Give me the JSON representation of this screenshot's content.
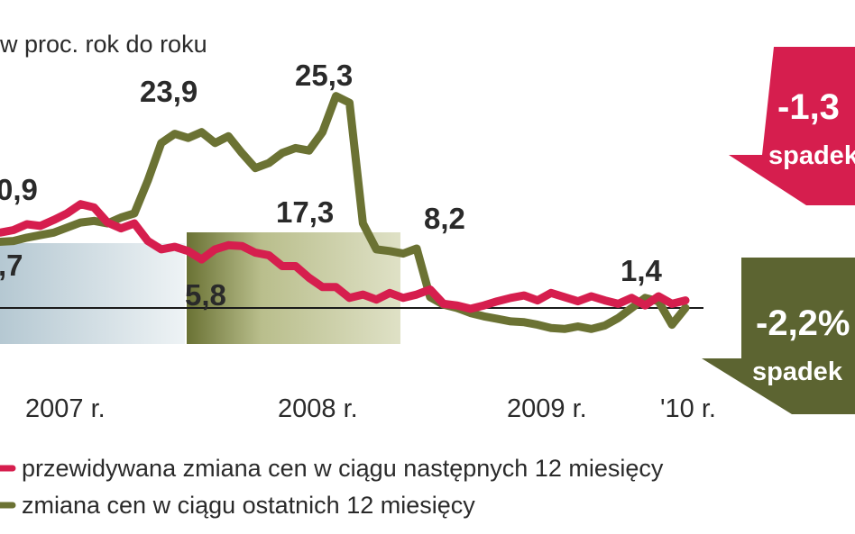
{
  "chart_data": {
    "type": "line",
    "unit_label": "w proc. rok do roku",
    "x_tick_labels": [
      "2007 r.",
      "2008 r.",
      "2009 r.",
      "'10 r."
    ],
    "series": [
      {
        "name": "przewidywana zmiana cen w ciągu następnych 12 miesięcy",
        "color": "#d61e4e",
        "values": [
          9.0,
          9.3,
          10.0,
          9.8,
          10.5,
          11.3,
          12.4,
          12.0,
          10.2,
          9.5,
          10.1,
          8.0,
          7.0,
          7.3,
          6.8,
          5.8,
          7.0,
          7.5,
          7.4,
          6.6,
          6.3,
          5.0,
          5.0,
          3.6,
          2.5,
          2.5,
          1.2,
          1.6,
          1.0,
          1.8,
          1.2,
          1.6,
          2.2,
          0.5,
          0.3,
          -0.1,
          0.3,
          0.8,
          1.2,
          1.5,
          0.9,
          1.8,
          1.3,
          0.8,
          1.4,
          0.9,
          0.5,
          1.2,
          0.3,
          1.4,
          0.5,
          0.9
        ]
      },
      {
        "name": "zmiana cen w ciągu ostatnich 12 miesięcy",
        "color": "#6b7233",
        "values": [
          7.9,
          8.0,
          8.4,
          8.7,
          9.0,
          9.6,
          10.2,
          10.4,
          10.1,
          10.8,
          11.3,
          15.2,
          19.7,
          20.8,
          20.3,
          21.0,
          19.7,
          20.5,
          18.5,
          16.7,
          17.3,
          18.5,
          19.1,
          18.8,
          21.0,
          25.3,
          24.5,
          10.1,
          7.0,
          6.8,
          6.5,
          7.1,
          1.3,
          0.4,
          0.0,
          -0.6,
          -1.0,
          -1.3,
          -1.6,
          -1.7,
          -2.0,
          -2.4,
          -2.5,
          -2.2,
          -2.5,
          -2.1,
          -1.2,
          0.0,
          1.2,
          0.8,
          -2.0,
          0.0
        ]
      }
    ],
    "data_labels": [
      "0,9",
      ",7",
      "23,9",
      "25,3",
      "17,3",
      "8,2",
      "5,8",
      "1,4"
    ],
    "grid": false,
    "legend_position": "bottom"
  },
  "callouts": [
    {
      "value": "-1,3",
      "word": "spadek",
      "color": "#d61e4e"
    },
    {
      "value": "-2,2%",
      "word": "spadek",
      "color": "#5c6431"
    }
  ]
}
